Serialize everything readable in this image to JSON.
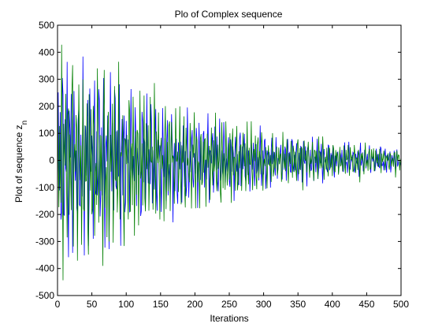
{
  "window": {
    "background": "#ffffff"
  },
  "chart_data": {
    "type": "line",
    "title": "Plo of Complex sequence",
    "xlabel": "Iterations",
    "ylabel_main": "Plot of sequence z",
    "ylabel_subscript": "n",
    "xlim": [
      0,
      500
    ],
    "ylim": [
      -500,
      500
    ],
    "xticks": [
      0,
      50,
      100,
      150,
      200,
      250,
      300,
      350,
      400,
      450,
      500
    ],
    "yticks": [
      -500,
      -400,
      -300,
      -200,
      -100,
      0,
      100,
      200,
      300,
      400,
      500
    ],
    "grid": false,
    "legend": "none",
    "series": [
      {
        "color": "#0000ff",
        "envelope": [
          {
            "x": 0,
            "amp": 430
          },
          {
            "x": 50,
            "amp": 380
          },
          {
            "x": 100,
            "amp": 300
          },
          {
            "x": 150,
            "amp": 250
          },
          {
            "x": 200,
            "amp": 200
          },
          {
            "x": 250,
            "amp": 150
          },
          {
            "x": 300,
            "amp": 120
          },
          {
            "x": 350,
            "amp": 100
          },
          {
            "x": 400,
            "amp": 80
          },
          {
            "x": 450,
            "amp": 65
          },
          {
            "x": 500,
            "amp": 50
          }
        ],
        "end_value": -20
      },
      {
        "color": "#007f00",
        "envelope": [
          {
            "x": 0,
            "amp": 440
          },
          {
            "x": 50,
            "amp": 390
          },
          {
            "x": 100,
            "amp": 320
          },
          {
            "x": 150,
            "amp": 260
          },
          {
            "x": 200,
            "amp": 210
          },
          {
            "x": 250,
            "amp": 160
          },
          {
            "x": 300,
            "amp": 125
          },
          {
            "x": 350,
            "amp": 105
          },
          {
            "x": 400,
            "amp": 85
          },
          {
            "x": 450,
            "amp": 70
          },
          {
            "x": 500,
            "amp": 55
          }
        ],
        "end_value": 10
      }
    ],
    "x_points": 501
  }
}
